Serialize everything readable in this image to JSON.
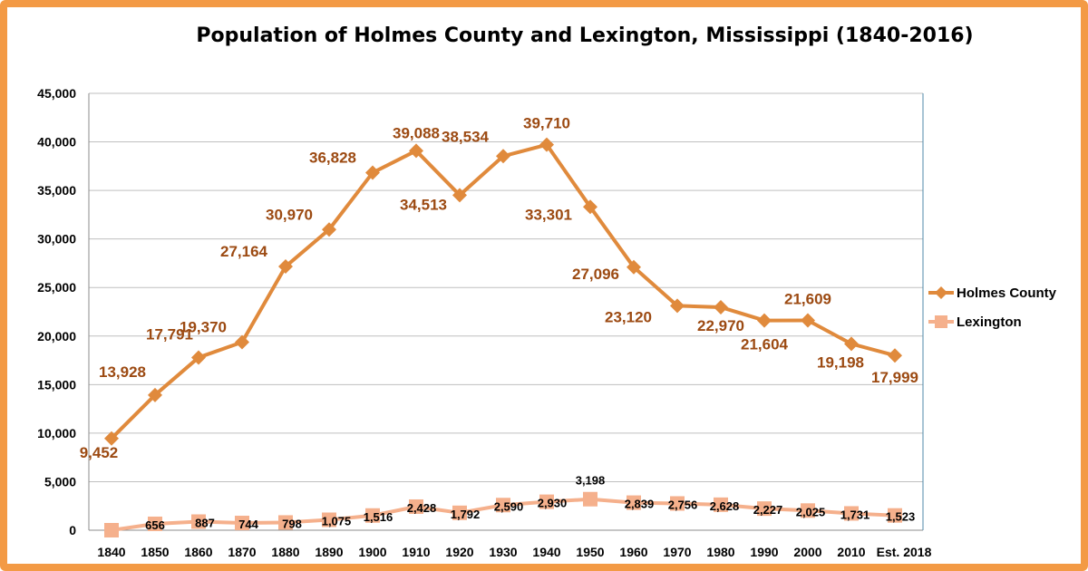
{
  "colors": {
    "frame": "#F39A45",
    "holmes": "#E08A3C",
    "lexington": "#F5B08C",
    "holmes_label": "#9C4A12",
    "grid": "#BFBFBF"
  },
  "chart_data": {
    "type": "line",
    "title": "Population of Holmes County and Lexington, Mississippi (1840-2016)",
    "xlabel": "",
    "ylabel": "",
    "ylim": [
      0,
      45000
    ],
    "yticks": [
      0,
      5000,
      10000,
      15000,
      20000,
      25000,
      30000,
      35000,
      40000,
      45000
    ],
    "ytick_labels": [
      "0",
      "5,000",
      "10,000",
      "15,000",
      "20,000",
      "25,000",
      "30,000",
      "35,000",
      "40,000",
      "45,000"
    ],
    "grid": true,
    "legend_position": "right",
    "categories": [
      "1840",
      "1850",
      "1860",
      "1870",
      "1880",
      "1890",
      "1900",
      "1910",
      "1920",
      "1930",
      "1940",
      "1950",
      "1960",
      "1970",
      "1980",
      "1990",
      "2000",
      "2010",
      "Est. 2018"
    ],
    "series": [
      {
        "name": "Holmes County",
        "marker": "diamond",
        "values": [
          9452,
          13928,
          17791,
          19370,
          27164,
          30970,
          36828,
          39088,
          34513,
          38534,
          39710,
          33301,
          27096,
          23120,
          22970,
          21604,
          21609,
          19198,
          17999
        ],
        "labels": [
          "9,452",
          "13,928",
          "17,791",
          "19,370",
          "27,164",
          "30,970",
          "36,828",
          "39,088",
          "34,513",
          "38,534",
          "39,710",
          "33,301",
          "27,096",
          "23,120",
          "22,970",
          "21,604",
          "21,609",
          "19,198",
          "17,999"
        ]
      },
      {
        "name": "Lexington",
        "marker": "square",
        "values": [
          0,
          656,
          887,
          744,
          798,
          1075,
          1516,
          2428,
          1792,
          2590,
          2930,
          3198,
          2839,
          2756,
          2628,
          2227,
          2025,
          1731,
          1523
        ],
        "labels": [
          "",
          "656",
          "887",
          "744",
          "798",
          "1,075",
          "1,516",
          "2,428",
          "1,792",
          "2,590",
          "2,930",
          "3,198",
          "2,839",
          "2,756",
          "2,628",
          "2,227",
          "2,025",
          "1,731",
          "1,523"
        ]
      }
    ]
  }
}
